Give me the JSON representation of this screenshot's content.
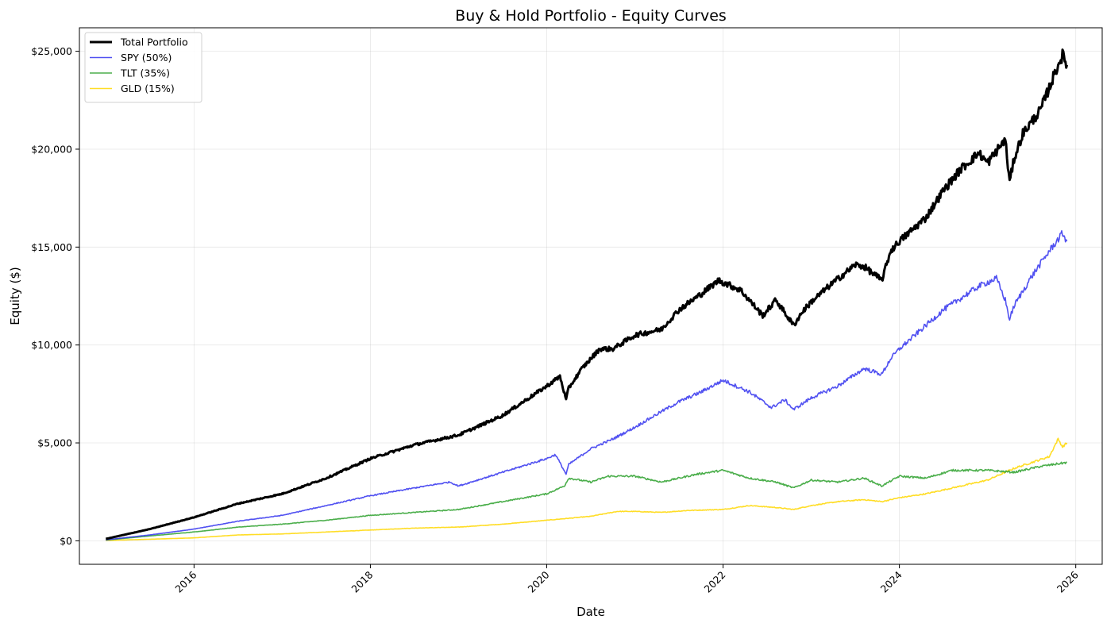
{
  "chart_data": {
    "type": "line",
    "title": "Buy & Hold Portfolio - Equity Curves",
    "xlabel": "Date",
    "ylabel": "Equity ($)",
    "xlim": [
      2014.7,
      2026.3
    ],
    "ylim": [
      -1200,
      26200
    ],
    "x_ticks": [
      2016,
      2018,
      2020,
      2022,
      2024,
      2026
    ],
    "x_tick_labels": [
      "2016",
      "2018",
      "2020",
      "2022",
      "2024",
      "2026"
    ],
    "y_ticks": [
      0,
      5000,
      10000,
      15000,
      20000,
      25000
    ],
    "y_tick_labels": [
      "$0",
      "$5,000",
      "$10,000",
      "$15,000",
      "$20,000",
      "$25,000"
    ],
    "grid": true,
    "legend_position": "top-left",
    "series": [
      {
        "name": "Total Portfolio",
        "color": "#000000",
        "x": [
          2015.0,
          2015.5,
          2016.0,
          2016.5,
          2017.0,
          2017.5,
          2018.0,
          2018.5,
          2018.8,
          2019.0,
          2019.5,
          2020.0,
          2020.15,
          2020.22,
          2020.25,
          2020.4,
          2020.6,
          2020.75,
          2021.0,
          2021.3,
          2021.5,
          2021.75,
          2021.95,
          2022.2,
          2022.45,
          2022.6,
          2022.8,
          2022.9,
          2023.0,
          2023.2,
          2023.5,
          2023.6,
          2023.8,
          2023.9,
          2024.0,
          2024.3,
          2024.5,
          2024.7,
          2024.9,
          2025.0,
          2025.2,
          2025.25,
          2025.3,
          2025.4,
          2025.6,
          2025.8,
          2025.85,
          2025.9
        ],
        "values": [
          100,
          600,
          1200,
          1900,
          2400,
          3200,
          4200,
          4900,
          5200,
          5400,
          6400,
          7900,
          8400,
          7200,
          7800,
          8800,
          9800,
          9800,
          10500,
          10800,
          11800,
          12600,
          13300,
          12800,
          11500,
          12300,
          11000,
          11700,
          12200,
          13000,
          14100,
          14000,
          13300,
          14800,
          15300,
          16500,
          17900,
          19000,
          19800,
          19300,
          20500,
          18300,
          19500,
          20800,
          22000,
          24300,
          24800,
          24300
        ]
      },
      {
        "name": "SPY (50%)",
        "color": "#3333ee",
        "x": [
          2015.0,
          2015.5,
          2016.0,
          2016.5,
          2017.0,
          2017.5,
          2018.0,
          2018.5,
          2018.9,
          2019.0,
          2019.5,
          2020.0,
          2020.1,
          2020.22,
          2020.25,
          2020.5,
          2020.75,
          2021.0,
          2021.3,
          2021.5,
          2021.75,
          2022.0,
          2022.3,
          2022.55,
          2022.7,
          2022.8,
          2023.0,
          2023.3,
          2023.6,
          2023.8,
          2023.9,
          2024.0,
          2024.3,
          2024.5,
          2024.7,
          2024.9,
          2025.1,
          2025.2,
          2025.25,
          2025.3,
          2025.5,
          2025.7,
          2025.85,
          2025.9
        ],
        "values": [
          50,
          300,
          600,
          1000,
          1300,
          1800,
          2300,
          2700,
          3000,
          2800,
          3500,
          4200,
          4400,
          3400,
          3900,
          4700,
          5200,
          5800,
          6600,
          7100,
          7600,
          8200,
          7600,
          6800,
          7200,
          6700,
          7300,
          7900,
          8800,
          8500,
          9300,
          9800,
          11000,
          11800,
          12400,
          13000,
          13400,
          12300,
          11300,
          12000,
          13500,
          14800,
          15700,
          15300
        ]
      },
      {
        "name": "TLT (35%)",
        "color": "#2ca02c",
        "x": [
          2015.0,
          2015.5,
          2016.0,
          2016.5,
          2017.0,
          2017.5,
          2018.0,
          2018.5,
          2019.0,
          2019.5,
          2020.0,
          2020.2,
          2020.25,
          2020.5,
          2020.7,
          2021.0,
          2021.3,
          2021.7,
          2022.0,
          2022.3,
          2022.6,
          2022.8,
          2023.0,
          2023.3,
          2023.6,
          2023.8,
          2024.0,
          2024.3,
          2024.6,
          2025.0,
          2025.3,
          2025.6,
          2025.9
        ],
        "values": [
          35,
          250,
          450,
          700,
          850,
          1050,
          1300,
          1450,
          1600,
          2000,
          2400,
          2800,
          3200,
          3000,
          3300,
          3300,
          3000,
          3400,
          3600,
          3200,
          3000,
          2700,
          3100,
          3000,
          3200,
          2800,
          3300,
          3200,
          3600,
          3600,
          3500,
          3800,
          4000
        ]
      },
      {
        "name": "GLD (15%)",
        "color": "#ffd700",
        "x": [
          2015.0,
          2015.5,
          2016.0,
          2016.5,
          2017.0,
          2017.5,
          2018.0,
          2018.5,
          2019.0,
          2019.5,
          2020.0,
          2020.5,
          2020.8,
          2021.0,
          2021.3,
          2021.6,
          2022.0,
          2022.3,
          2022.6,
          2022.8,
          2023.0,
          2023.3,
          2023.6,
          2023.8,
          2024.0,
          2024.3,
          2024.6,
          2025.0,
          2025.3,
          2025.5,
          2025.7,
          2025.8,
          2025.85,
          2025.9
        ],
        "values": [
          15,
          80,
          150,
          300,
          350,
          450,
          550,
          650,
          700,
          850,
          1050,
          1250,
          1500,
          1500,
          1450,
          1550,
          1600,
          1800,
          1700,
          1600,
          1800,
          2000,
          2100,
          2000,
          2200,
          2400,
          2700,
          3100,
          3700,
          4000,
          4300,
          5200,
          4800,
          5000
        ]
      }
    ]
  }
}
